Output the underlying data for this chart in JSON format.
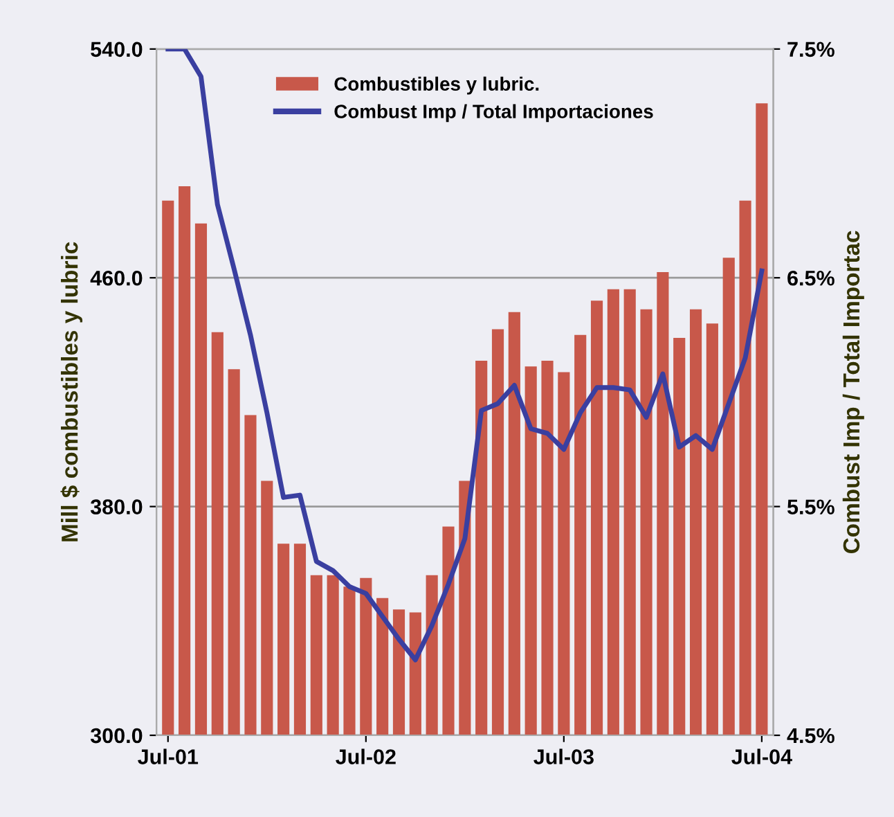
{
  "chart_data": {
    "type": "bar",
    "ylabel": "Mill $ combustibles y lubric",
    "y2label": "Combust Imp / Total Importac",
    "categories": [
      "Jul-01",
      null,
      null,
      null,
      null,
      null,
      null,
      null,
      null,
      null,
      null,
      null,
      "Jul-02",
      null,
      null,
      null,
      null,
      null,
      null,
      null,
      null,
      null,
      null,
      null,
      "Jul-03",
      null,
      null,
      null,
      null,
      null,
      null,
      null,
      null,
      null,
      null,
      null,
      "Jul-04"
    ],
    "series": [
      {
        "name": "Combustibles y lubric.",
        "color": "#c8584a",
        "values": [
          487,
          492,
          479,
          441,
          428,
          412,
          389,
          367,
          367,
          356,
          356,
          352,
          355,
          348,
          344,
          343,
          356,
          373,
          389,
          431,
          442,
          448,
          429,
          431,
          427,
          440,
          452,
          456,
          456,
          449,
          462,
          439,
          449,
          444,
          467,
          487,
          521
        ]
      },
      {
        "name": "Combust Imp / Total Importaciones",
        "type": "line",
        "axis": "y2",
        "color": "#3a3fa0",
        "values": [
          7.5,
          7.5,
          7.38,
          6.82,
          6.54,
          6.25,
          5.91,
          5.54,
          5.55,
          5.26,
          5.22,
          5.15,
          5.12,
          5.02,
          4.92,
          4.83,
          4.98,
          5.16,
          5.36,
          5.92,
          5.95,
          6.03,
          5.84,
          5.82,
          5.75,
          5.91,
          6.02,
          6.02,
          6.01,
          5.89,
          6.08,
          5.76,
          5.81,
          5.75,
          5.95,
          6.15,
          6.53
        ]
      }
    ],
    "ylim": [
      300,
      540
    ],
    "yticks": [
      {
        "value": 300,
        "label": "300.0"
      },
      {
        "value": 380,
        "label": "380.0"
      },
      {
        "value": 460,
        "label": "460.0"
      },
      {
        "value": 540,
        "label": "540.0"
      }
    ],
    "y2lim": [
      4.5,
      7.5
    ],
    "y2ticks": [
      {
        "value": 4.5,
        "label": "4.5%"
      },
      {
        "value": 5.5,
        "label": "5.5%"
      },
      {
        "value": 6.5,
        "label": "6.5%"
      },
      {
        "value": 7.5,
        "label": "7.5%"
      }
    ],
    "grid": "y",
    "legend": "top",
    "marker": "none",
    "line_style": "solid"
  }
}
